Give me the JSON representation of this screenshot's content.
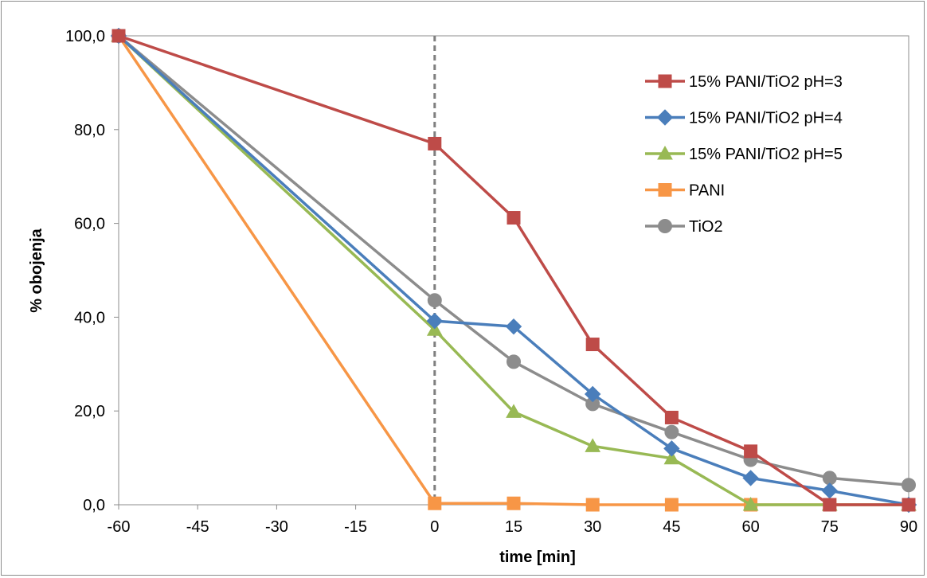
{
  "chart_data": {
    "type": "line",
    "title": "",
    "xlabel": "time [min]",
    "ylabel": "% obojenja",
    "x": [
      -60,
      0,
      15,
      30,
      45,
      60,
      75,
      90
    ],
    "xlim": [
      -60,
      90
    ],
    "ylim": [
      0,
      100
    ],
    "x_ticks": [
      -60,
      -45,
      -30,
      -15,
      0,
      15,
      30,
      45,
      60,
      75,
      90
    ],
    "x_tick_labels": [
      "-60",
      "-45",
      "-30",
      "-15",
      "0",
      "15",
      "30",
      "45",
      "60",
      "75",
      "90"
    ],
    "y_ticks": [
      0,
      20,
      40,
      60,
      80,
      100
    ],
    "y_tick_labels": [
      "0,0",
      "20,0",
      "40,0",
      "60,0",
      "80,0",
      "100,0"
    ],
    "grid": false,
    "legend_position": "top-right",
    "vertical_reference_line": {
      "x": 0,
      "style": "dashed",
      "color": "#7f7f7f"
    },
    "series": [
      {
        "name": "15% PANI/TiO2 pH=3",
        "color": "#be4b48",
        "marker": "square",
        "values": [
          100,
          77,
          61.2,
          34.2,
          18.6,
          11.4,
          0,
          0
        ]
      },
      {
        "name": "15% PANI/TiO2 pH=4",
        "color": "#4a7ebb",
        "marker": "diamond",
        "values": [
          100,
          39.2,
          38,
          23.6,
          12,
          5.7,
          3,
          0
        ]
      },
      {
        "name": "15% PANI/TiO2 pH=5",
        "color": "#98b954",
        "marker": "triangle",
        "values": [
          100,
          37.3,
          19.8,
          12.5,
          9.9,
          0,
          0,
          0
        ]
      },
      {
        "name": "PANI",
        "color": "#f79646",
        "marker": "square",
        "values": [
          100,
          0.3,
          0.3,
          0,
          0,
          0,
          0,
          0
        ]
      },
      {
        "name": "TiO2",
        "color": "#8c8c8c",
        "marker": "circle",
        "values": [
          100,
          43.6,
          30.5,
          21.5,
          15.5,
          9.6,
          5.7,
          4.2
        ]
      }
    ]
  }
}
